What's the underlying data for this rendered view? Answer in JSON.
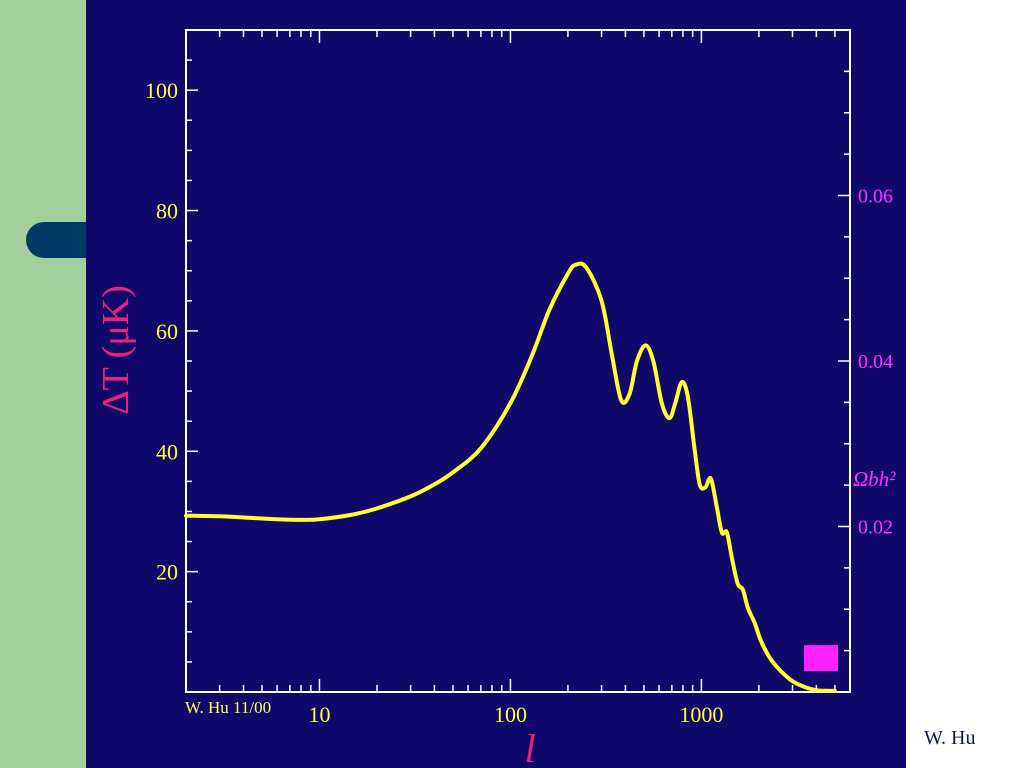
{
  "footer": {
    "credit": "W. Hu"
  },
  "colors": {
    "panel_background": "#11086b",
    "slide_strip": "#a3cf9d",
    "tab_pill": "#003a66",
    "axes": "#ffffff",
    "curve": "#ffff33",
    "left_tick_labels": "#ffff33",
    "ylabel": "#e8237a",
    "xlabel": "#e8237a",
    "right_axis": "#ff33ff",
    "slider_marker": "#ff22ff"
  },
  "chart_data": {
    "type": "line",
    "ylabel": "ΔT (μK)",
    "xlabel": "l",
    "stamp": "W. Hu 11/00",
    "x_scale": "log",
    "xlim": [
      2,
      6000
    ],
    "ylim": [
      0,
      110
    ],
    "x_ticks": [
      10,
      100,
      1000
    ],
    "y_ticks": [
      20,
      40,
      60,
      80,
      100
    ],
    "grid": false,
    "right_axis": {
      "label": "Ωbh²",
      "ticks": [
        0.02,
        0.04,
        0.06
      ],
      "range": [
        0,
        0.08
      ],
      "marker_value": 0.003
    },
    "series": [
      {
        "x": [
          2,
          3,
          4,
          6,
          8,
          10,
          15,
          20,
          30,
          40,
          50,
          70,
          100,
          130,
          160,
          200,
          220,
          250,
          300,
          340,
          380,
          420,
          460,
          510,
          560,
          620,
          680,
          730,
          790,
          850,
          920,
          980,
          1050,
          1120,
          1200,
          1280,
          1360,
          1450,
          1550,
          1650,
          1750,
          1900,
          2050,
          2300,
          2600,
          3000,
          3500,
          4000,
          4500,
          5000
        ],
        "y": [
          29.3,
          29.2,
          29.0,
          28.7,
          28.6,
          28.7,
          29.5,
          30.5,
          32.5,
          34.5,
          36.5,
          40.5,
          48.0,
          56.0,
          63.5,
          69.5,
          71.0,
          70.5,
          65.0,
          56.0,
          48.5,
          49.5,
          55.0,
          57.6,
          55.0,
          48.0,
          45.5,
          48.0,
          51.5,
          49.0,
          40.5,
          34.5,
          34.0,
          35.5,
          31.0,
          26.5,
          26.5,
          22.0,
          18.0,
          17.0,
          14.0,
          11.5,
          8.5,
          5.5,
          3.5,
          1.8,
          0.8,
          0.3,
          0.2,
          0.2
        ]
      }
    ]
  }
}
